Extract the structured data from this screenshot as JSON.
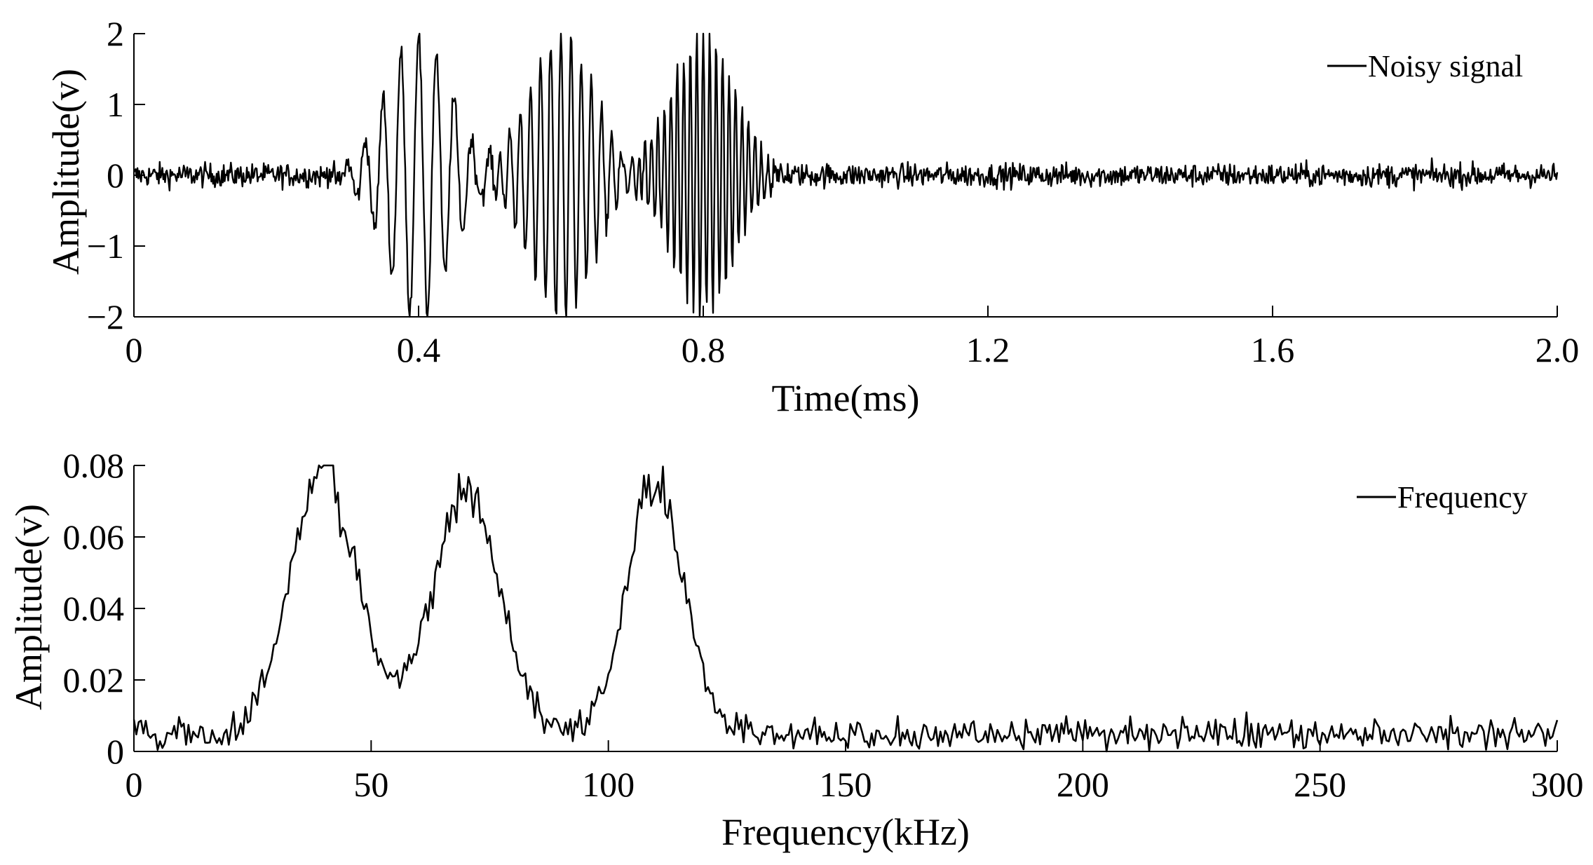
{
  "chart_data": [
    {
      "type": "line",
      "xlabel": "Time(ms)",
      "ylabel": "Amplitude(v)",
      "xlim": [
        0,
        2.0
      ],
      "ylim": [
        -2,
        2
      ],
      "xticks": [
        0,
        0.4,
        0.8,
        1.2,
        1.6,
        2.0
      ],
      "xtick_labels": [
        "0",
        "0.4",
        "0.8",
        "1.2",
        "1.6",
        "2.0"
      ],
      "yticks": [
        -2,
        -1,
        0,
        1,
        2
      ],
      "ytick_labels": [
        "−2",
        "−1",
        "0",
        "1",
        "2"
      ],
      "legend": {
        "position": "top-right"
      },
      "grid": false,
      "series": [
        {
          "name": "Noisy signal",
          "color": "#000000",
          "description": "Gaussian noise (~±0.15 v) with three tone bursts",
          "noise_amplitude": 0.15,
          "bursts": [
            {
              "center_ms": 0.4,
              "width_ms": 0.045,
              "peak": 2.0,
              "freq_khz": 40
            },
            {
              "center_ms": 0.6,
              "width_ms": 0.045,
              "peak": 2.0,
              "freq_khz": 70
            },
            {
              "center_ms": 0.8,
              "width_ms": 0.045,
              "peak": 2.0,
              "freq_khz": 110
            }
          ]
        }
      ]
    },
    {
      "type": "line",
      "xlabel": "Frequency(kHz)",
      "ylabel": "Amplitude(v)",
      "xlim": [
        0,
        300
      ],
      "ylim": [
        0,
        0.08
      ],
      "xticks": [
        0,
        50,
        100,
        150,
        200,
        250,
        300
      ],
      "xtick_labels": [
        "0",
        "50",
        "100",
        "150",
        "200",
        "250",
        "300"
      ],
      "yticks": [
        0,
        0.02,
        0.04,
        0.06,
        0.08
      ],
      "ytick_labels": [
        "0",
        "0.02",
        "0.04",
        "0.06",
        "0.08"
      ],
      "legend": {
        "position": "top-right"
      },
      "grid": false,
      "series": [
        {
          "name": "Frequency",
          "color": "#000000",
          "description": "Spectrum with three peaks over a noise floor of about 0.005 v",
          "noise_floor": 0.005,
          "peaks": [
            {
              "center_khz": 40,
              "width_khz": 7,
              "peak": 0.078
            },
            {
              "center_khz": 70,
              "width_khz": 7,
              "peak": 0.074
            },
            {
              "center_khz": 110,
              "width_khz": 6,
              "peak": 0.075
            }
          ]
        }
      ]
    }
  ]
}
